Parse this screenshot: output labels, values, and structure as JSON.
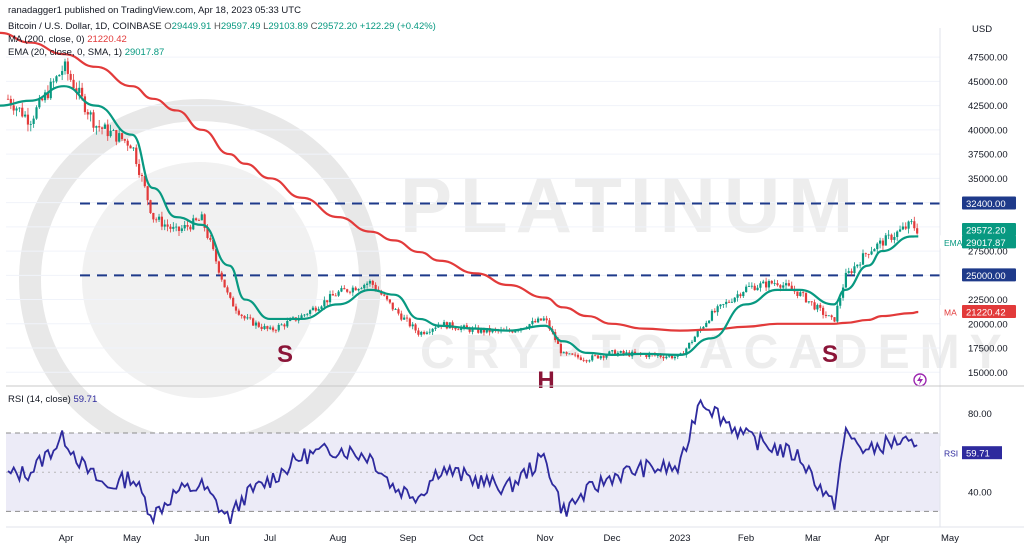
{
  "header": {
    "publisher": "ranadagger1 published on TradingView.com, Apr 18, 2023 05:33 UTC",
    "symbol": "Bitcoin / U.S. Dollar, 1D, COINBASE",
    "O": "29449.91",
    "H": "29597.49",
    "L": "29103.89",
    "C": "29572.20",
    "chg": "+122.29 (+0.42%)",
    "ma_label": "MA (200, close, 0)",
    "ma_value": "21220.42",
    "ema_label": "EMA (20, close, 0, SMA, 1)",
    "ema_value": "29017.87"
  },
  "rsi_header": {
    "label": "RSI (14, close)",
    "value": "59.71"
  },
  "watermark": {
    "line1": "PLATINUM",
    "line2": "CRYPTO ACADEMY"
  },
  "colors": {
    "ema": "#089981",
    "ma": "#e23a3a",
    "rsi": "#2e2a9e",
    "up": "#089981",
    "down": "#e23a3a",
    "level": "#1e3a8a",
    "pattern": "#8b1538",
    "rsi_band": "#ecebf7"
  },
  "chart_data": [
    {
      "type": "candlestick",
      "title": "Bitcoin / U.S. Dollar, 1D, COINBASE",
      "currency": "USD",
      "y_ticks": [
        15000,
        17500,
        20000,
        22500,
        25000,
        27500,
        30000,
        32500,
        35000,
        37500,
        40000,
        42500,
        45000,
        47500
      ],
      "y_ticks_labels": [
        "15000.00",
        "17500.00",
        "20000.00",
        "22500.00",
        "25000.00",
        "27500.00",
        "30000.00",
        "32500.00",
        "35000.00",
        "37500.00",
        "40000.00",
        "42500.00",
        "45000.00",
        "47500.00"
      ],
      "ylim": [
        14000,
        50500
      ],
      "x_ticks": [
        "Apr",
        "May",
        "Jun",
        "Jul",
        "Aug",
        "Sep",
        "Oct",
        "Nov",
        "Dec",
        "2023",
        "Feb",
        "Mar",
        "Apr",
        "May"
      ],
      "levels": [
        {
          "value": 32400,
          "label": "32400.00"
        },
        {
          "value": 25000,
          "label": "25000.00"
        }
      ],
      "price_labels": [
        {
          "value": 29572.2,
          "label": "29572.20",
          "tag": ""
        },
        {
          "value": 29017.87,
          "label": "29017.87",
          "tag": "EMA"
        },
        {
          "value": 21220.42,
          "label": "21220.42",
          "tag": "MA"
        }
      ],
      "annotations": [
        {
          "text": "S",
          "x": "Jun",
          "y": 17500
        },
        {
          "text": "H",
          "x": "Nov",
          "y": 14800
        },
        {
          "text": "S",
          "x": "Mar",
          "y": 17500
        }
      ],
      "series": [
        {
          "name": "Price (close)",
          "kind": "candles",
          "dates": [
            "Mar 1",
            "Mar 15",
            "Apr 1",
            "Apr 15",
            "May 1",
            "May 10",
            "May 20",
            "Jun 1",
            "Jun 13",
            "Jun 20",
            "Jul 1",
            "Jul 15",
            "Aug 1",
            "Aug 15",
            "Aug 25",
            "Sep 6",
            "Sep 15",
            "Oct 1",
            "Oct 15",
            "Nov 1",
            "Nov 9",
            "Nov 20",
            "Dec 1",
            "Dec 15",
            "Jan 1",
            "Jan 15",
            "Feb 1",
            "Feb 15",
            "Feb 25",
            "Mar 10",
            "Mar 15",
            "Mar 25",
            "Apr 1",
            "Apr 14",
            "Apr 17"
          ],
          "values": [
            44000,
            41000,
            46500,
            40500,
            38500,
            31000,
            29500,
            30800,
            22500,
            20500,
            19300,
            20800,
            23200,
            24300,
            21500,
            19000,
            20000,
            19300,
            19200,
            20500,
            16800,
            16400,
            17000,
            16800,
            16600,
            20900,
            23700,
            24300,
            23100,
            20200,
            24800,
            27500,
            28400,
            30300,
            29572.2
          ]
        },
        {
          "name": "EMA (20, close, 0, SMA, 1)",
          "values": [
            42500,
            43000,
            44500,
            42500,
            39500,
            34000,
            31000,
            30200,
            26000,
            22500,
            20500,
            20500,
            22000,
            23500,
            23000,
            20500,
            19800,
            19500,
            19300,
            19800,
            18200,
            17000,
            16800,
            16900,
            16800,
            18500,
            22000,
            23500,
            23500,
            22000,
            23500,
            26000,
            27500,
            29000,
            29017.87
          ]
        },
        {
          "name": "MA (200, close, 0)",
          "values": [
            50000,
            49000,
            47800,
            46500,
            44500,
            43200,
            42000,
            40000,
            37500,
            36500,
            35000,
            33000,
            31000,
            29500,
            28600,
            27400,
            26500,
            25200,
            24000,
            22700,
            21700,
            20800,
            20000,
            19500,
            19300,
            19400,
            19700,
            20000,
            20000,
            20000,
            20100,
            20400,
            20800,
            21100,
            21220.42
          ]
        }
      ]
    },
    {
      "type": "line",
      "title": "RSI (14, close)",
      "y_ticks": [
        40,
        80
      ],
      "y_ticks_labels": [
        "40.00",
        "80.00"
      ],
      "band": [
        30,
        70
      ],
      "midline": 50,
      "ylim": [
        22,
        92
      ],
      "series": [
        {
          "name": "RSI",
          "dates": [
            "Mar 1",
            "Mar 15",
            "Apr 1",
            "Apr 10",
            "Apr 20",
            "May 1",
            "May 10",
            "May 20",
            "Jun 1",
            "Jun 13",
            "Jun 20",
            "Jul 1",
            "Jul 15",
            "Aug 1",
            "Aug 15",
            "Aug 25",
            "Sep 6",
            "Sep 15",
            "Oct 1",
            "Oct 15",
            "Nov 1",
            "Nov 9",
            "Nov 20",
            "Dec 1",
            "Dec 15",
            "Jan 1",
            "Jan 10",
            "Jan 20",
            "Feb 1",
            "Feb 15",
            "Feb 25",
            "Mar 10",
            "Mar 15",
            "Mar 25",
            "Apr 1",
            "Apr 10",
            "Apr 17"
          ],
          "values": [
            48,
            50,
            68,
            52,
            42,
            48,
            28,
            40,
            43,
            26,
            38,
            46,
            58,
            62,
            58,
            42,
            38,
            52,
            46,
            42,
            58,
            30,
            40,
            48,
            52,
            52,
            88,
            78,
            68,
            62,
            58,
            32,
            70,
            60,
            64,
            66,
            59.71
          ]
        }
      ]
    }
  ]
}
